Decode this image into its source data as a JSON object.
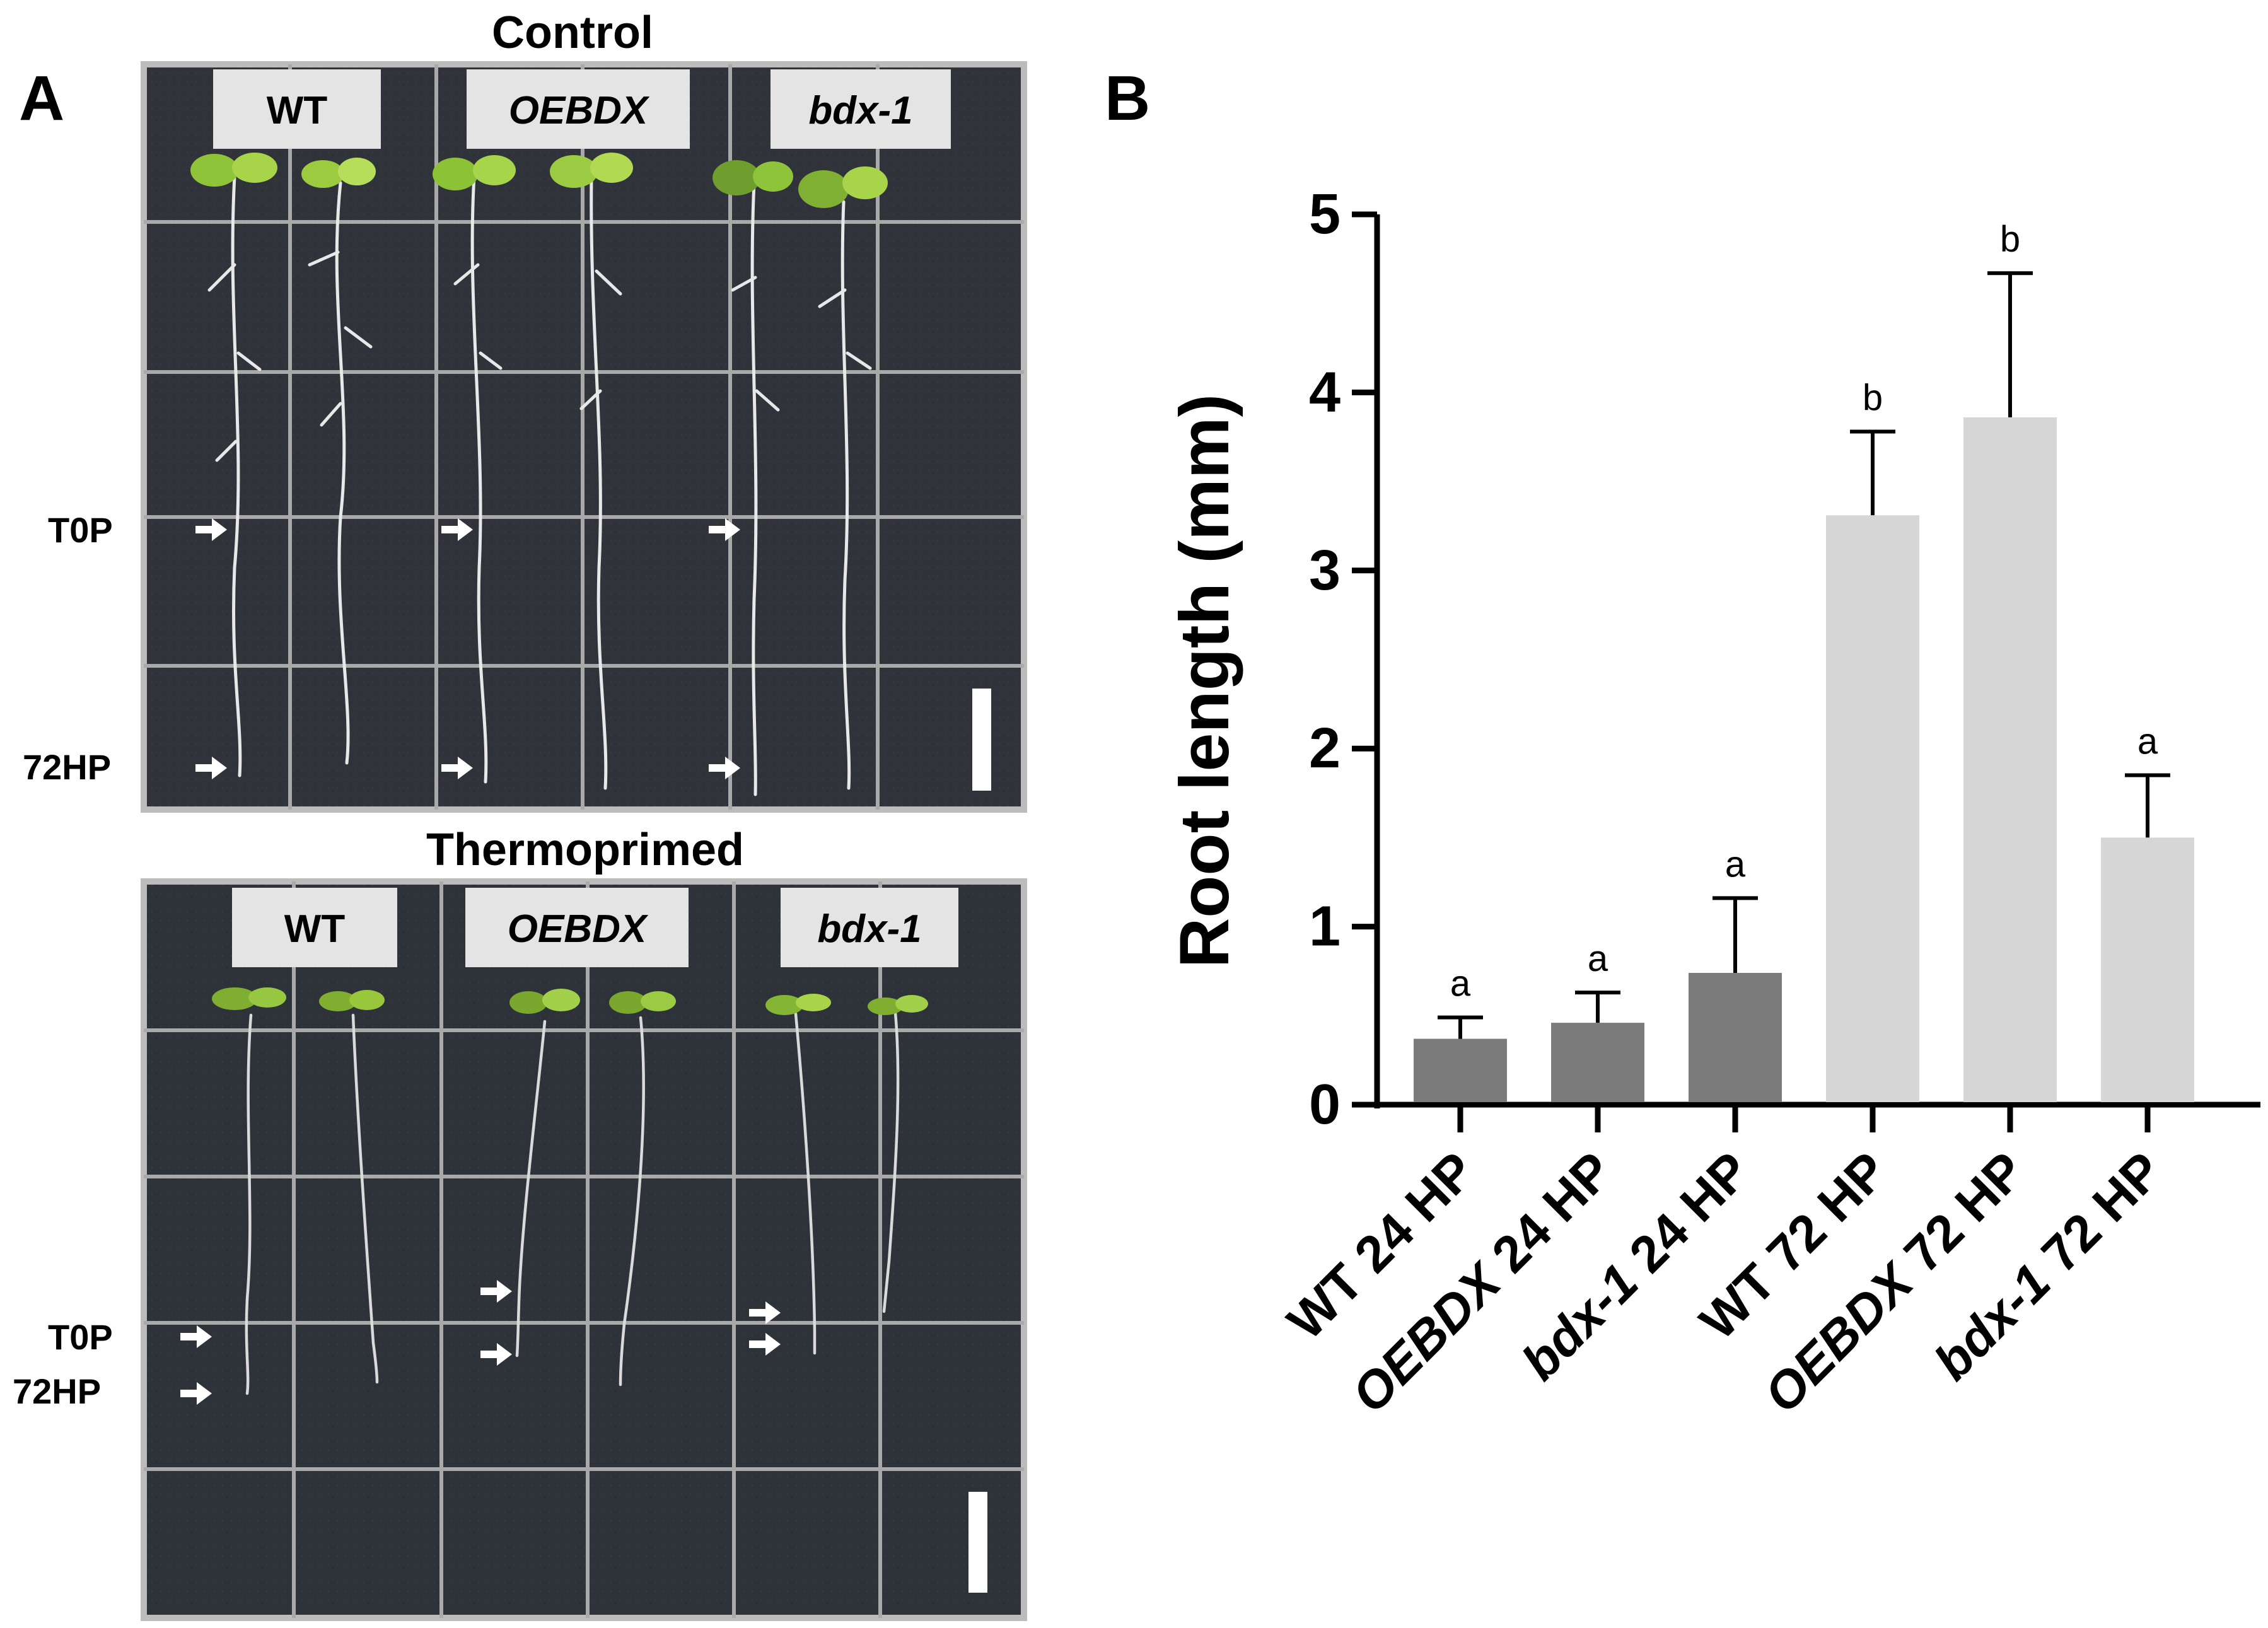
{
  "panel_a": {
    "letter": "A",
    "top_plate": {
      "title": "Control",
      "genotypes": [
        "WT",
        "OEBDX",
        "bdx-1"
      ],
      "markers": [
        "T0P",
        "72HP"
      ]
    },
    "bottom_plate": {
      "title": "Thermoprimed",
      "genotypes": [
        "WT",
        "OEBDX",
        "bdx-1"
      ],
      "markers": [
        "T0P",
        "72HP"
      ]
    }
  },
  "panel_b": {
    "letter": "B"
  },
  "chart_data": {
    "type": "bar",
    "title": "",
    "xlabel": "",
    "ylabel": "Root length (mm)",
    "ylim": [
      0,
      5
    ],
    "yticks": [
      0,
      1,
      2,
      3,
      4,
      5
    ],
    "grid": false,
    "categories": [
      "WT 24 HP",
      "OEBDX 24 HP",
      "bdx-1 24 HP",
      "WT 72 HP",
      "OEBDX 72 HP",
      "bdx-1 72 HP"
    ],
    "category_parts": [
      {
        "genotype": "WT",
        "time": "24 HP"
      },
      {
        "genotype": "OEBDX",
        "time": "24 HP"
      },
      {
        "genotype": "bdx-1",
        "time": "24 HP"
      },
      {
        "genotype": "WT",
        "time": "72 HP"
      },
      {
        "genotype": "OEBDX",
        "time": "72 HP"
      },
      {
        "genotype": "bdx-1",
        "time": "72 HP"
      }
    ],
    "values": [
      0.37,
      0.46,
      0.74,
      3.31,
      3.86,
      1.5
    ],
    "errors": [
      0.12,
      0.17,
      0.42,
      0.47,
      0.81,
      0.35
    ],
    "significance": [
      "a",
      "a",
      "a",
      "b",
      "b",
      "a"
    ],
    "colors": [
      "#7b7b7b",
      "#7b7b7b",
      "#7b7b7b",
      "#d6d6d6",
      "#d6d6d6",
      "#d6d6d6"
    ]
  }
}
